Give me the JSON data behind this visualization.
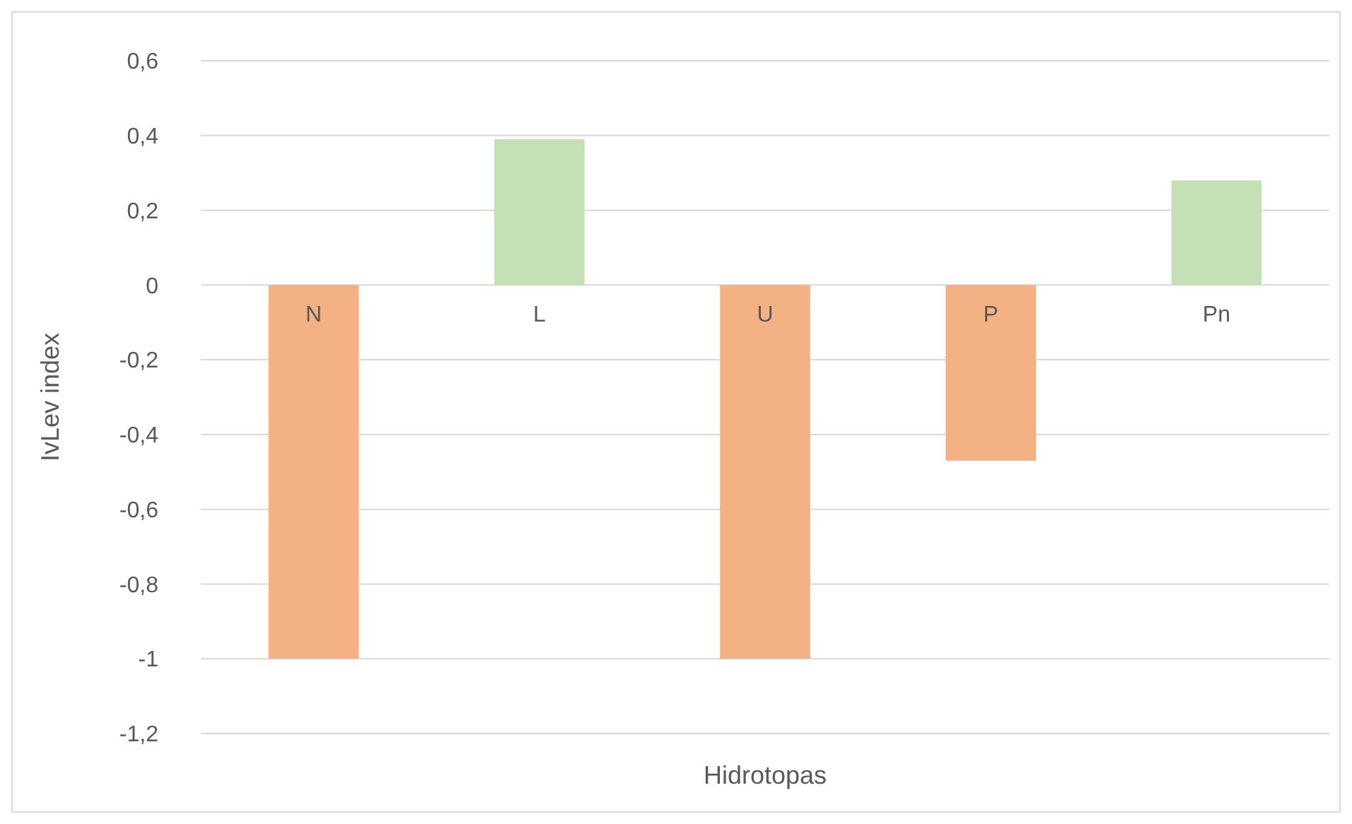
{
  "chart_data": {
    "type": "bar",
    "xlabel": "Hidrotopas",
    "ylabel": "IvLev index",
    "categories": [
      "N",
      "L",
      "U",
      "P",
      "Pn"
    ],
    "values": [
      -1,
      0.39,
      -1,
      -0.47,
      0.28
    ],
    "colors": [
      "#f4b183",
      "#c5e0b4",
      "#f4b183",
      "#f4b183",
      "#c5e0b4"
    ],
    "ylim": [
      -1.2,
      0.6
    ],
    "yticks": [
      {
        "value": -1.2,
        "label": "-1,2"
      },
      -1,
      {
        "value": -0.8,
        "label": "-0,8"
      },
      {
        "value": -0.6,
        "label": "-0,6"
      },
      {
        "value": -0.4,
        "label": "-0,4"
      },
      {
        "value": -0.2,
        "label": "-0,2"
      },
      0,
      {
        "value": 0.2,
        "label": "0,2"
      },
      {
        "value": 0.4,
        "label": "0,4"
      },
      {
        "value": 0.6,
        "label": "0,6"
      }
    ],
    "grid": "y"
  }
}
